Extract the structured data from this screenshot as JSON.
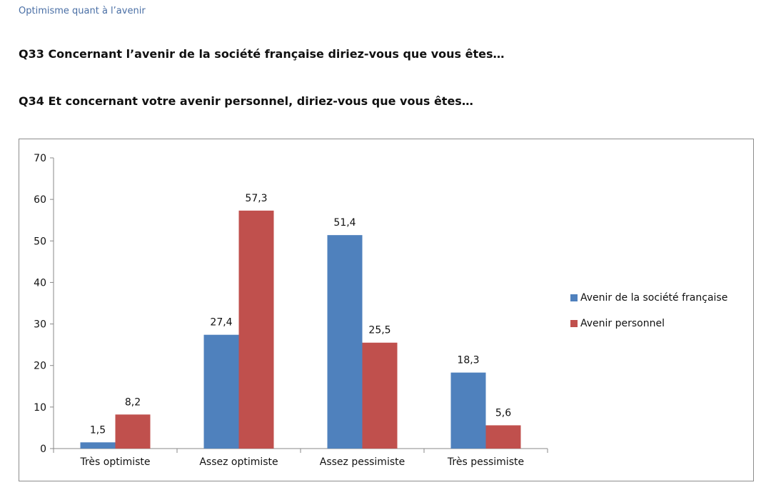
{
  "header": {
    "section_title": "Optimisme quant à l’avenir",
    "q33": "Q33 Concernant l’avenir de la société française diriez-vous que vous êtes…",
    "q34": "Q34 Et concernant votre avenir personnel, diriez-vous que vous êtes…"
  },
  "chart_data": {
    "type": "bar",
    "categories": [
      "Très optimiste",
      "Assez optimiste",
      "Assez pessimiste",
      "Très pessimiste"
    ],
    "series": [
      {
        "name": "Avenir de la société française",
        "values": [
          1.5,
          27.4,
          51.4,
          18.3
        ],
        "labels": [
          "1,5",
          "27,4",
          "51,4",
          "18,3"
        ],
        "color": "#4f81bd"
      },
      {
        "name": "Avenir personnel",
        "values": [
          8.2,
          57.3,
          25.5,
          5.6
        ],
        "labels": [
          "8,2",
          "57,3",
          "25,5",
          "5,6"
        ],
        "color": "#c0504d"
      }
    ],
    "ylim": [
      0,
      70
    ],
    "yticks": [
      0,
      10,
      20,
      30,
      40,
      50,
      60,
      70
    ],
    "grid": false,
    "legend_position": "right",
    "title": "",
    "xlabel": "",
    "ylabel": ""
  }
}
